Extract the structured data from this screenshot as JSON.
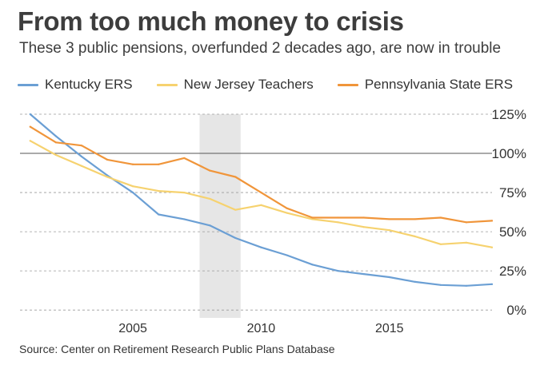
{
  "title": "From too much money to crisis",
  "subtitle": "These 3 public pensions, overfunded 2 decades ago, are now in trouble",
  "source": "Source: Center on Retirement Research Public Plans Database",
  "colors": {
    "kentucky": "#6b9fd4",
    "new_jersey": "#f6d26f",
    "pennsylvania": "#f0953a",
    "recession_band": "#e6e6e6",
    "grid": "#9a9a9a",
    "baseline": "#555555"
  },
  "chart_data": {
    "type": "line",
    "title": "From too much money to crisis",
    "subtitle": "These 3 public pensions, overfunded 2 decades ago, are now in trouble",
    "xlabel": "",
    "ylabel": "",
    "xlim": [
      2000.6,
      2019
    ],
    "ylim": [
      -5,
      125
    ],
    "x_ticks": [
      2005,
      2010,
      2015
    ],
    "x_tick_labels": [
      "2005",
      "2010",
      "2015"
    ],
    "y_ticks": [
      0,
      25,
      50,
      75,
      100,
      125
    ],
    "y_tick_labels": [
      "0%",
      "25%",
      "50%",
      "75%",
      "100%",
      "125%"
    ],
    "reference_line": 100,
    "shaded_region": [
      2007.6,
      2009.2
    ],
    "grid": "horizontal dashed",
    "legend_position": "top",
    "series": [
      {
        "name": "Kentucky ERS",
        "color_key": "kentucky",
        "x": [
          2001,
          2002,
          2003,
          2004,
          2005,
          2006,
          2007,
          2008,
          2009,
          2010,
          2011,
          2012,
          2013,
          2014,
          2015,
          2016,
          2017,
          2018,
          2019
        ],
        "values": [
          125,
          111,
          98,
          86,
          75,
          61,
          58,
          54,
          46,
          40,
          35,
          29,
          25,
          23,
          21,
          18,
          16,
          15.5,
          16.5
        ]
      },
      {
        "name": "New Jersey Teachers",
        "color_key": "new_jersey",
        "x": [
          2001,
          2002,
          2003,
          2004,
          2005,
          2006,
          2007,
          2008,
          2009,
          2010,
          2011,
          2012,
          2013,
          2014,
          2015,
          2016,
          2017,
          2018,
          2019
        ],
        "values": [
          108,
          99,
          92,
          85,
          79,
          76,
          75,
          71,
          64,
          67,
          62,
          58,
          56,
          53,
          51,
          47,
          42,
          43,
          40
        ]
      },
      {
        "name": "Pennsylvania State ERS",
        "color_key": "pennsylvania",
        "x": [
          2001,
          2002,
          2003,
          2004,
          2005,
          2006,
          2007,
          2008,
          2009,
          2010,
          2011,
          2012,
          2013,
          2014,
          2015,
          2016,
          2017,
          2018,
          2019
        ],
        "values": [
          117,
          107,
          105,
          96,
          93,
          93,
          97,
          89,
          85,
          75,
          65,
          59,
          59,
          59,
          58,
          58,
          59,
          56,
          57
        ]
      }
    ]
  }
}
